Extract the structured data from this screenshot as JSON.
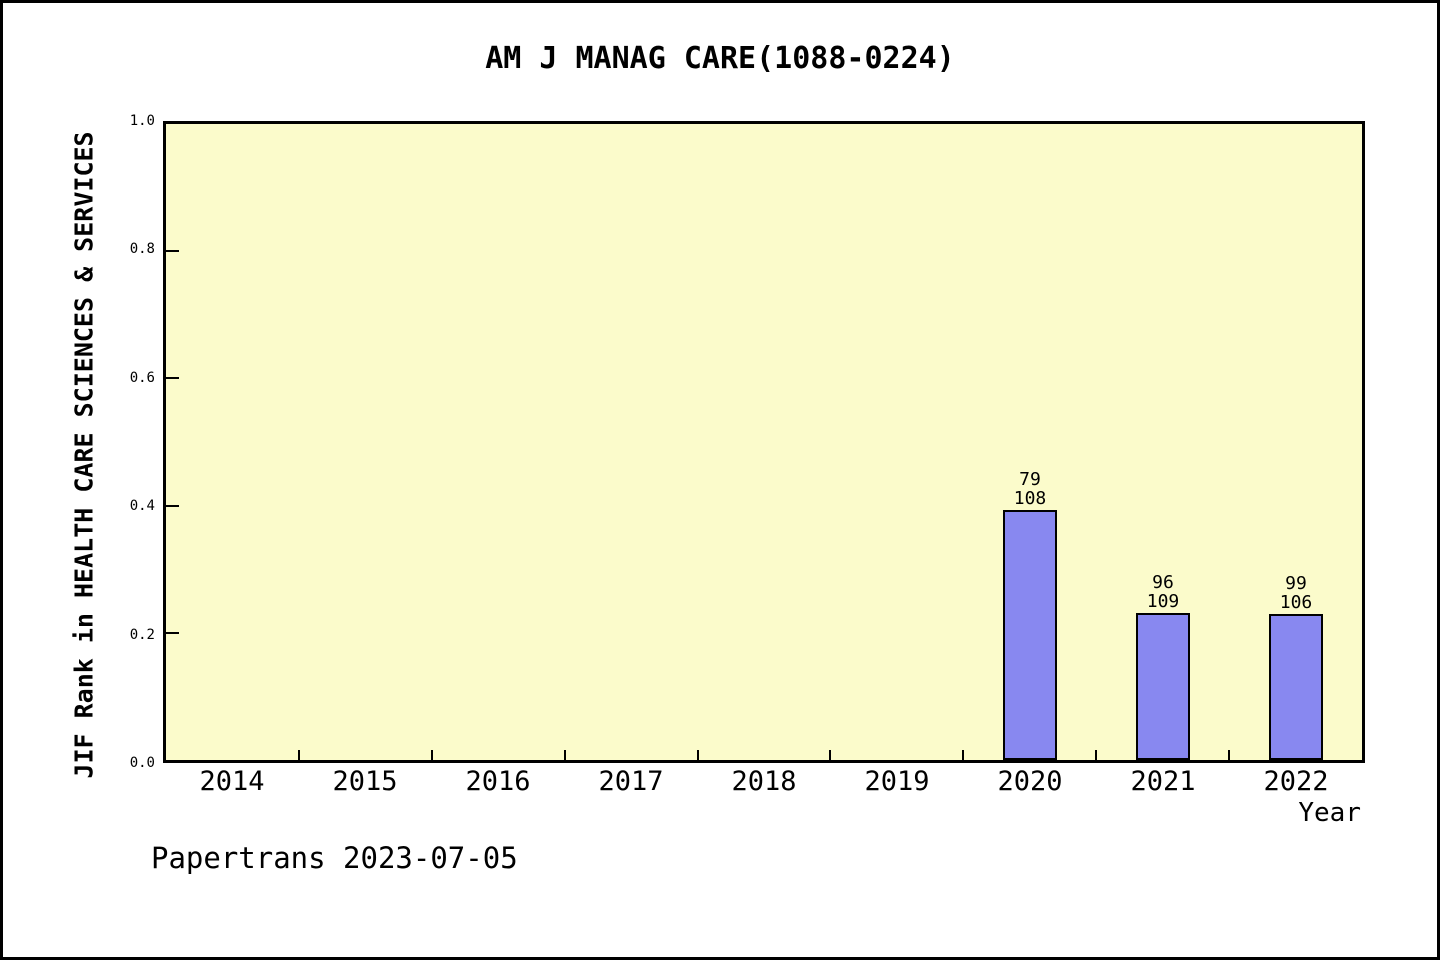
{
  "chart_data": {
    "type": "bar",
    "title": "AM J MANAG CARE(1088-0224)",
    "xlabel": "Year",
    "ylabel": "JIF Rank in HEALTH CARE SCIENCES & SERVICES",
    "categories": [
      "2014",
      "2015",
      "2016",
      "2017",
      "2018",
      "2019",
      "2020",
      "2021",
      "2022"
    ],
    "series": [
      {
        "name": "JIF Rank",
        "values": [
          null,
          null,
          null,
          null,
          null,
          null,
          0.393,
          0.231,
          0.229
        ]
      }
    ],
    "bar_annotations": [
      {
        "category": "2020",
        "rank": "79",
        "total": "108"
      },
      {
        "category": "2021",
        "rank": "96",
        "total": "109"
      },
      {
        "category": "2022",
        "rank": "99",
        "total": "106"
      }
    ],
    "ylim": [
      0.0,
      1.0
    ],
    "ytick_labels": [
      "1.0",
      "0.8",
      "0.6",
      "0.4",
      "0.2",
      "0.0"
    ],
    "ytick_values": [
      1.0,
      0.8,
      0.6,
      0.4,
      0.2,
      0.0
    ],
    "grid": false,
    "legend": false,
    "colors": {
      "bar_fill": "#8888F0",
      "bar_border": "#000000",
      "plot_bg": "#FBFBCB",
      "frame": "#000000",
      "text": "#000000",
      "page_bg": "#FFFFFF"
    }
  },
  "footer": {
    "text": "Papertrans 2023-07-05"
  }
}
